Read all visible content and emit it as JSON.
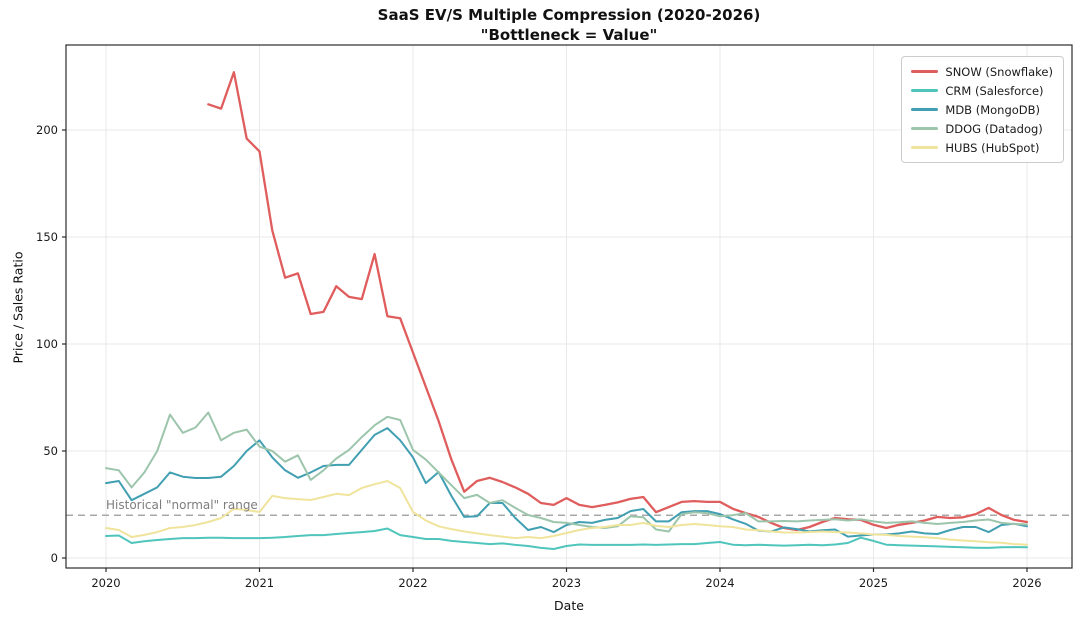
{
  "figure": {
    "title": "SaaS EV/S Multiple Compression (2020-2026)",
    "subtitle": "\"Bottleneck = Value\"",
    "xlabel": "Date",
    "ylabel": "Price / Sales Ratio",
    "annotation": "Historical \"normal\" range"
  },
  "chart_data": {
    "type": "line",
    "title": "SaaS EV/S Multiple Compression (2020-2026)",
    "subtitle": "\"Bottleneck = Value\"",
    "xlabel": "Date",
    "ylabel": "Price / Sales Ratio",
    "x_unit": "month",
    "x_start": "2020-01",
    "x_end": "2026-01",
    "x_tick_labels": [
      "2020",
      "2021",
      "2022",
      "2023",
      "2024",
      "2025",
      "2026"
    ],
    "y_ticks": [
      0,
      50,
      100,
      150,
      200
    ],
    "ylim": [
      -5,
      240
    ],
    "grid": true,
    "grid_color": "#e9e9e9",
    "legend_position": "upper right",
    "reference_line": {
      "value": 20,
      "style": "dashed",
      "color": "#a8a8a8",
      "label": "Historical \"normal\" range"
    },
    "series": [
      {
        "name": "SNOW (Snowflake)",
        "ticker": "SNOW",
        "color": "#e05d5d",
        "line_width": 2.3,
        "values": [
          null,
          null,
          null,
          null,
          null,
          null,
          null,
          null,
          212,
          210,
          227,
          196,
          190,
          153,
          131,
          133,
          114,
          115,
          127,
          122,
          121,
          142,
          113,
          112,
          96,
          80,
          64,
          46,
          31,
          36,
          37.5,
          35.5,
          33,
          30,
          25.7,
          24.8,
          28,
          24.8,
          23.8,
          24.8,
          26,
          27.6,
          28.5,
          21.4,
          23.8,
          26.2,
          26.6,
          26.2,
          26.2,
          23,
          21,
          19.2,
          16.4,
          14,
          13.1,
          14.5,
          16.8,
          18.7,
          18.1,
          17.8,
          15.5,
          14,
          15.5,
          16.4,
          17.5,
          19.2,
          18.7,
          19,
          20.5,
          23.4,
          20.1,
          17.8,
          16.8
        ]
      },
      {
        "name": "CRM (Salesforce)",
        "ticker": "CRM",
        "color": "#4fc5bc",
        "line_width": 2,
        "values": [
          10.3,
          10.5,
          7,
          7.8,
          8.4,
          8.9,
          9.3,
          9.3,
          9.5,
          9.5,
          9.3,
          9.3,
          9.3,
          9.5,
          9.8,
          10.3,
          10.7,
          10.7,
          11.2,
          11.7,
          12.1,
          12.6,
          13.8,
          10.7,
          9.8,
          8.9,
          8.9,
          8,
          7.5,
          7,
          6.5,
          6.8,
          6.1,
          5.6,
          4.7,
          4.2,
          5.6,
          6.3,
          6.1,
          6.1,
          6.1,
          6.1,
          6.3,
          6.1,
          6.3,
          6.5,
          6.5,
          7,
          7.5,
          6.2,
          6,
          6.2,
          6,
          5.8,
          6,
          6.2,
          6,
          6.3,
          7,
          9.5,
          8,
          6.2,
          6,
          5.8,
          5.6,
          5.4,
          5.2,
          5,
          4.8,
          4.7,
          5,
          5.1,
          5
        ]
      },
      {
        "name": "MDB (MongoDB)",
        "ticker": "MDB",
        "color": "#419fb2",
        "line_width": 2,
        "values": [
          35,
          36,
          27,
          30,
          33,
          40,
          38,
          37.4,
          37.4,
          38,
          43,
          50,
          55,
          47,
          41,
          37.5,
          40,
          43,
          43.5,
          43.5,
          50.5,
          57.5,
          60.7,
          55,
          47,
          35,
          40.2,
          29,
          19.2,
          19.5,
          25.7,
          25.7,
          18.7,
          13.1,
          14.5,
          12.1,
          15.4,
          16.8,
          16.4,
          17.8,
          18.7,
          21.9,
          22.9,
          17.1,
          17.1,
          21.4,
          21.9,
          21.9,
          20.5,
          18.1,
          16,
          12.8,
          12.4,
          14.3,
          13.5,
          12.4,
          13,
          13.3,
          10,
          10.5,
          11,
          11,
          11.5,
          12.4,
          11.5,
          11.2,
          13.1,
          14.5,
          14.5,
          12.1,
          15.4,
          16,
          14.8
        ]
      },
      {
        "name": "DDOG (Datadog)",
        "ticker": "DDOG",
        "color": "#9cc5ab",
        "line_width": 2,
        "values": [
          42,
          41,
          33,
          40,
          50,
          67,
          58.5,
          61,
          68,
          55,
          58.5,
          60,
          52,
          50,
          45,
          48,
          36.5,
          41,
          46.5,
          50.5,
          56.5,
          62,
          66,
          64.5,
          50.5,
          46,
          40,
          34,
          28,
          29.5,
          25.7,
          27,
          23.4,
          20.1,
          18.7,
          16.8,
          16.4,
          15.4,
          14.5,
          14,
          14.8,
          19.5,
          19,
          13.3,
          12.4,
          20.5,
          21.4,
          21,
          19.5,
          20,
          21,
          17.1,
          17.1,
          17.3,
          17.1,
          17.5,
          17.8,
          18.1,
          17.5,
          18.1,
          17.1,
          16.4,
          16.7,
          17.1,
          16.4,
          15.9,
          16.4,
          16.8,
          17.5,
          18,
          16.4,
          15.9,
          15.7
        ]
      },
      {
        "name": "HUBS (HubSpot)",
        "ticker": "HUBS",
        "color": "#f0e49c",
        "line_width": 2,
        "values": [
          14,
          13.1,
          9.8,
          10.8,
          12.1,
          14,
          14.5,
          15.4,
          16.8,
          18.7,
          23,
          22.4,
          21.5,
          29,
          28,
          27.5,
          27.1,
          28.5,
          30,
          29.4,
          32.7,
          34.5,
          36,
          32.7,
          21.5,
          17.5,
          14.8,
          13.5,
          12.4,
          11.5,
          10.7,
          10,
          9.3,
          9.8,
          9.3,
          10.3,
          11.7,
          13.1,
          14,
          14.5,
          15.4,
          15.4,
          16.4,
          15,
          14.5,
          15.4,
          15.9,
          15.4,
          14.8,
          14.5,
          13.3,
          13,
          12.4,
          11.9,
          11.9,
          12.1,
          12.4,
          12.1,
          11.9,
          11.5,
          11,
          10.8,
          10.3,
          10,
          9.7,
          9.3,
          8.6,
          8.2,
          7.8,
          7.4,
          7.1,
          6.5,
          6.2
        ]
      }
    ]
  }
}
